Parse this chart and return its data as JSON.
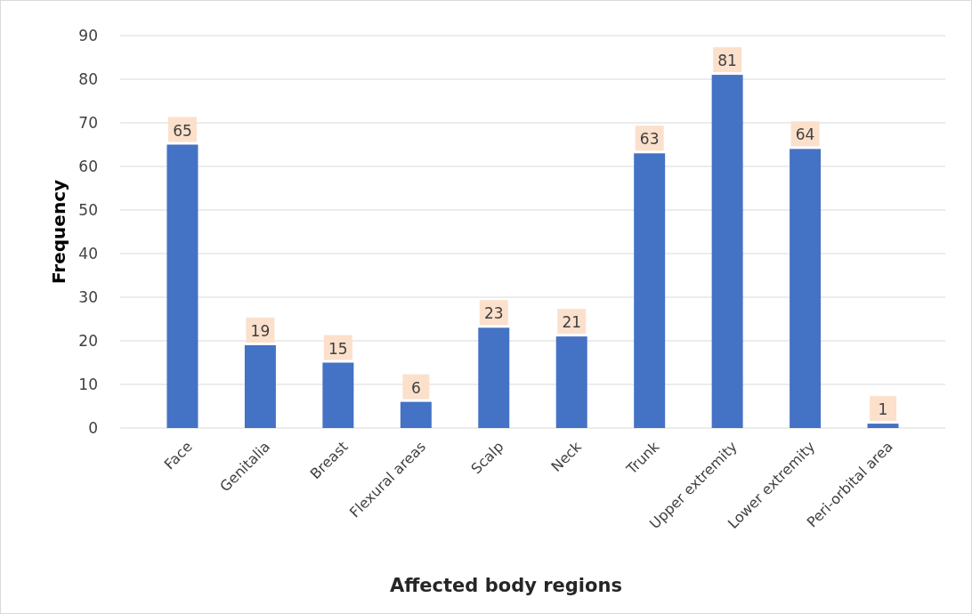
{
  "chart_data": {
    "type": "bar",
    "xlabel": "Affected body regions",
    "ylabel": "Frequency",
    "categories": [
      "Face",
      "Genitalia",
      "Breast",
      "Flexural areas",
      "Scalp",
      "Neck",
      "Trunk",
      "Upper extremity",
      "Lower extremity",
      "Peri-orbital area"
    ],
    "values": [
      65,
      19,
      15,
      6,
      23,
      21,
      63,
      81,
      64,
      1
    ],
    "color": "#4472c4",
    "ylim": [
      0,
      90
    ],
    "yticks": [
      0,
      10,
      20,
      30,
      40,
      50,
      60,
      70,
      80,
      90
    ],
    "grid": "y",
    "data_labels": true
  }
}
